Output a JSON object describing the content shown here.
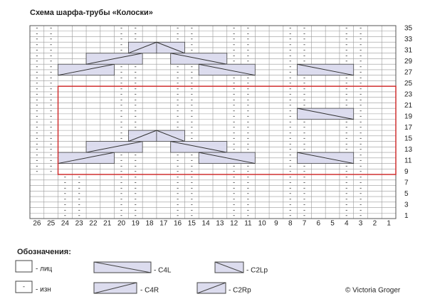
{
  "header": {
    "title": "Схема шарфа-трубы «Колоски»"
  },
  "symbols": {
    "purl": "-"
  },
  "row_numbers": [
    35,
    33,
    31,
    29,
    27,
    25,
    23,
    21,
    19,
    17,
    15,
    13,
    11,
    9,
    7,
    5,
    3,
    1
  ],
  "column_numbers": [
    26,
    25,
    24,
    23,
    22,
    21,
    20,
    19,
    18,
    17,
    16,
    15,
    14,
    13,
    12,
    11,
    10,
    9,
    8,
    7,
    6,
    5,
    4,
    3,
    2,
    1
  ],
  "purl_blocks": [
    {
      "rows": [
        1,
        8
      ],
      "cols": [
        24,
        23,
        20,
        19,
        16,
        15,
        12,
        11,
        8,
        7,
        4,
        3
      ]
    },
    {
      "rows": [
        9,
        35
      ],
      "cols": [
        26,
        25,
        20,
        19,
        16,
        15,
        12,
        11,
        8,
        7,
        4,
        3
      ]
    }
  ],
  "cables": [
    {
      "symbol": "C4R",
      "row": 11,
      "cols": [
        24,
        21
      ]
    },
    {
      "symbol": "C4R",
      "row": 13,
      "cols": [
        22,
        19
      ]
    },
    {
      "symbol": "C2Rp",
      "row": 15,
      "cols": [
        19,
        18
      ]
    },
    {
      "symbol": "C2Lp",
      "row": 15,
      "cols": [
        17,
        16
      ]
    },
    {
      "symbol": "C4L",
      "row": 13,
      "cols": [
        16,
        13
      ]
    },
    {
      "symbol": "C4L",
      "row": 11,
      "cols": [
        14,
        11
      ]
    },
    {
      "symbol": "C4L",
      "row": 11,
      "cols": [
        7,
        4
      ]
    },
    {
      "symbol": "C4L",
      "row": 19,
      "cols": [
        7,
        4
      ]
    },
    {
      "symbol": "C4R",
      "row": 27,
      "cols": [
        24,
        21
      ]
    },
    {
      "symbol": "C4R",
      "row": 29,
      "cols": [
        22,
        19
      ]
    },
    {
      "symbol": "C2Rp",
      "row": 31,
      "cols": [
        19,
        18
      ]
    },
    {
      "symbol": "C2Lp",
      "row": 31,
      "cols": [
        17,
        16
      ]
    },
    {
      "symbol": "C4L",
      "row": 29,
      "cols": [
        16,
        13
      ]
    },
    {
      "symbol": "C4L",
      "row": 27,
      "cols": [
        14,
        11
      ]
    },
    {
      "symbol": "C4L",
      "row": 27,
      "cols": [
        7,
        4
      ]
    }
  ],
  "legend": {
    "heading": "Обозначения:",
    "knit": "- лиц",
    "purl": "- изн",
    "c4l": "- C4L",
    "c2lp": "- C2Lp",
    "c4r": "- C4R",
    "c2rp": "- C2Rp"
  },
  "copyright": "© Victoria Groger"
}
